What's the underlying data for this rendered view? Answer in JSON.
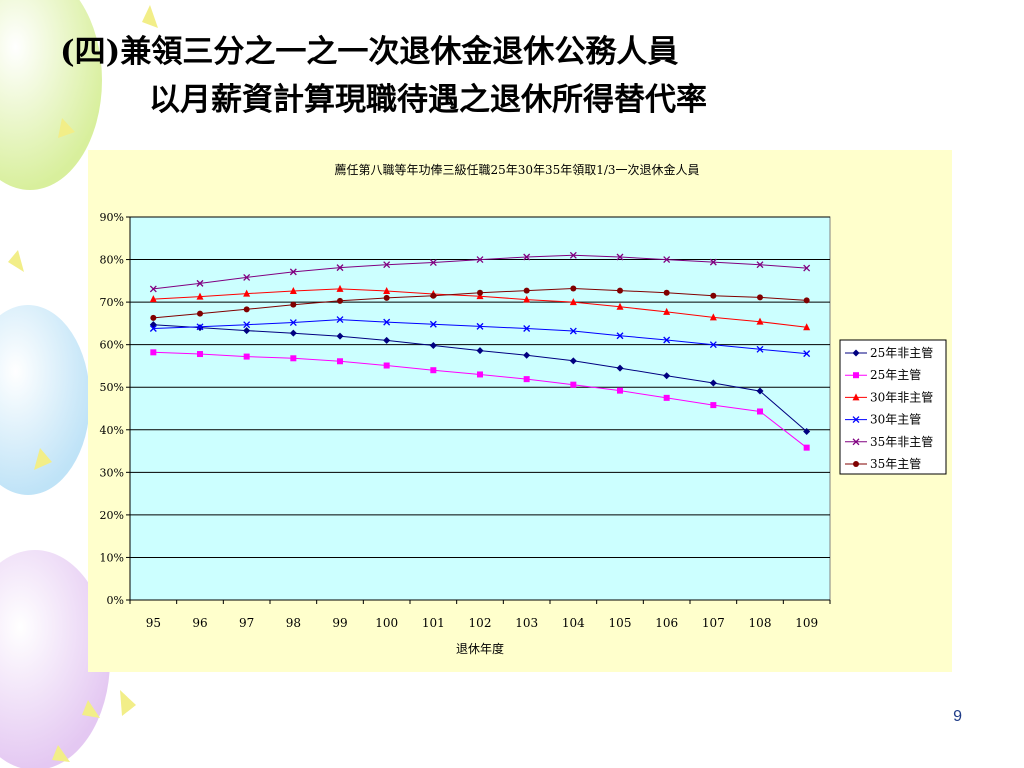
{
  "slide": {
    "title_line1": "(四)兼領三分之一之一次退休金退休公務人員",
    "title_line2": "以月薪資計算現職待遇之退休所得替代率",
    "page_number": "9"
  },
  "chart_data": {
    "type": "line",
    "title": "薦任第八職等年功俸三級任職25年30年35年領取1/3一次退休金人員",
    "xlabel": "退休年度",
    "ylabel": "",
    "categories": [
      "95",
      "96",
      "97",
      "98",
      "99",
      "100",
      "101",
      "102",
      "103",
      "104",
      "105",
      "106",
      "107",
      "108",
      "109"
    ],
    "ylim": [
      0,
      90
    ],
    "yticks": [
      "0%",
      "10%",
      "20%",
      "30%",
      "40%",
      "50%",
      "60%",
      "70%",
      "80%",
      "90%"
    ],
    "grid": true,
    "legend_position": "right",
    "series": [
      {
        "name": "25年非主管",
        "color": "#000080",
        "marker": "diamond",
        "values": [
          64.7,
          64.0,
          63.3,
          62.7,
          62.0,
          61.0,
          59.8,
          58.6,
          57.5,
          56.2,
          54.5,
          52.7,
          51.0,
          49.1,
          39.6
        ]
      },
      {
        "name": "25年主管",
        "color": "#ff00ff",
        "marker": "square",
        "values": [
          58.2,
          57.8,
          57.2,
          56.8,
          56.1,
          55.1,
          54.0,
          53.0,
          51.9,
          50.6,
          49.2,
          47.5,
          45.8,
          44.3,
          35.8
        ]
      },
      {
        "name": "30年非主管",
        "color": "#ff0000",
        "marker": "triangle",
        "values": [
          70.7,
          71.3,
          72.0,
          72.6,
          73.1,
          72.6,
          71.9,
          71.4,
          70.6,
          70.0,
          68.9,
          67.7,
          66.4,
          65.4,
          64.1
        ]
      },
      {
        "name": "30年主管",
        "color": "#0000ff",
        "marker": "x",
        "values": [
          63.8,
          64.2,
          64.7,
          65.2,
          65.9,
          65.3,
          64.8,
          64.3,
          63.8,
          63.2,
          62.1,
          61.1,
          60.0,
          58.9,
          57.9
        ]
      },
      {
        "name": "35年非主管",
        "color": "#800080",
        "marker": "x",
        "values": [
          73.1,
          74.4,
          75.8,
          77.1,
          78.1,
          78.8,
          79.3,
          80.0,
          80.6,
          81.0,
          80.6,
          80.0,
          79.4,
          78.8,
          78.0
        ]
      },
      {
        "name": "35年主管",
        "color": "#800000",
        "marker": "circle",
        "values": [
          66.3,
          67.3,
          68.3,
          69.4,
          70.3,
          71.0,
          71.5,
          72.2,
          72.7,
          73.2,
          72.7,
          72.2,
          71.5,
          71.1,
          70.4
        ]
      }
    ]
  }
}
